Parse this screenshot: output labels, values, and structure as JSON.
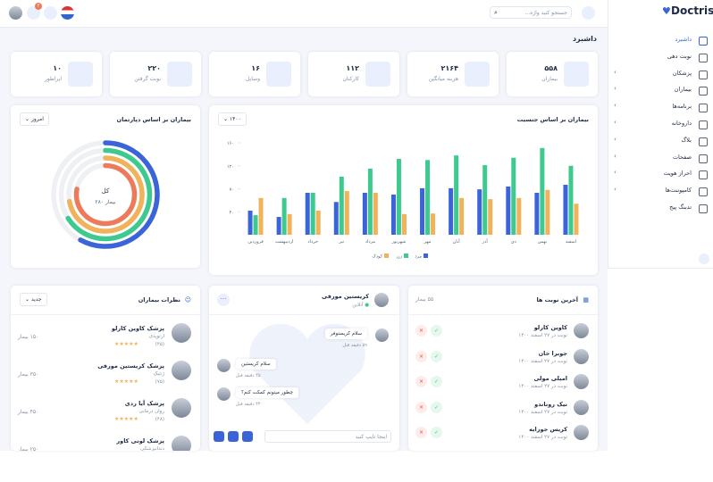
{
  "sidebar": {
    "logo": "Doctris",
    "menu": [
      "داشبرد",
      "نوبت دهی",
      "پزشکان",
      "بیماران",
      "برنامه‌ها",
      "داروخانه",
      "بلاگ",
      "صفحات",
      "احراز هویت",
      "کامپوننت‌ها",
      "تدبنگ پیج"
    ]
  },
  "topbar": {
    "search": "جستجو کنید واژه...",
    "badge": "۴"
  },
  "page_title": "داشبرد",
  "stats": [
    {
      "value": "۵۵۸",
      "label": "بیماران"
    },
    {
      "value": "۲۱۶۴",
      "label": "هزینه میانگین"
    },
    {
      "value": "۱۱۲",
      "label": "کارکنان"
    },
    {
      "value": "۱۶",
      "label": "وسایل"
    },
    {
      "value": "۲۲۰",
      "label": "نوبت گرفتن"
    },
    {
      "value": "۱۰",
      "label": "اپراطور"
    }
  ],
  "chart_data": [
    {
      "type": "bar",
      "title": "بیماران بر اساس جنسیت",
      "dropdown": "۱۴۰۰",
      "categories": [
        "فروردین",
        "اردیبهشت",
        "خرداد",
        "تیر",
        "مرداد",
        "شهریور",
        "مهر",
        "آبان",
        "آذر",
        "دی",
        "بهمن",
        "اسفند"
      ],
      "series": [
        {
          "name": "مرد",
          "color": "#3c64d9",
          "values": [
            42,
            31,
            73,
            57,
            73,
            70,
            81,
            81,
            79,
            84,
            73,
            87
          ]
        },
        {
          "name": "زن",
          "color": "#3ec98e",
          "values": [
            34,
            64,
            73,
            101,
            115,
            132,
            130,
            138,
            121,
            134,
            151,
            120
          ]
        },
        {
          "name": "کودک",
          "color": "#f0b25a",
          "values": [
            64,
            36,
            42,
            76,
            73,
            36,
            37,
            64,
            62,
            64,
            78,
            54
          ]
        }
      ],
      "ylim": [
        0,
        160
      ],
      "yticks": [
        {
          "value": 40,
          "label": "۴۰"
        },
        {
          "value": 80,
          "label": "۸۰"
        },
        {
          "value": 120,
          "label": "۱۲۰"
        },
        {
          "value": 160,
          "label": "۱۶۰"
        }
      ],
      "grid": false,
      "legend": "bottom"
    },
    {
      "type": "radialBar",
      "title": "بیماران بر اساس دپارتمان",
      "dropdown": "امروز",
      "center_label": "کل",
      "center_value": "۲۸۰ بیمار",
      "ylim": [
        0,
        100
      ],
      "values": [
        58,
        66,
        72,
        78
      ],
      "colors": [
        "#3c64d9",
        "#3ec98e",
        "#f0b25a",
        "#ee7a5c"
      ]
    }
  ],
  "appointments": {
    "title": "آخرین نوبت ها",
    "count": "۵۵ بیمار",
    "items": [
      {
        "name": "کاوین کارلو",
        "date": "نوبت در ۲۷ اسفند ۱۴۰۰"
      },
      {
        "name": "جوبرا خان",
        "date": "نوبت در ۲۷ اسفند ۱۴۰۰"
      },
      {
        "name": "امیلی مولی",
        "date": "نوبت در ۲۷ اسفند ۱۴۰۰"
      },
      {
        "name": "نیک روناندو",
        "date": "نوبت در ۲۷ اسفند ۱۴۰۰"
      },
      {
        "name": "کریس جوزایه",
        "date": "نوبت در ۲۷ اسفند ۱۴۰۰"
      }
    ]
  },
  "chat": {
    "name": "کریستین مورفی",
    "status": "آنلاین",
    "messages": [
      {
        "text": "سلام کریستوفر",
        "time": "۵۹ دقیقه قبل"
      },
      {
        "text": "سلام کریستین",
        "time": "۴۵ دقیقه قبل"
      },
      {
        "text": "چطور میتونم کمکت کنم؟",
        "time": "۴۴ دقیقه قبل"
      }
    ],
    "input": "اینجا تایپ کنید"
  },
  "reviews": {
    "title": "نظرات بیماران",
    "filter": "جدید",
    "items": [
      {
        "name": "پزشک کاوین کارلو",
        "specialty": "ارتوپدی",
        "rating": "(۴۵)",
        "patients": "۱۵۰ بیمار"
      },
      {
        "name": "پزشک کریستین مورفی",
        "specialty": "ژنتیک",
        "rating": "(۷۵)",
        "patients": "۳۵۰ بیمار"
      },
      {
        "name": "پزشک آیا ردی",
        "specialty": "روان درمانی",
        "rating": "(۴۸)",
        "patients": "۴۵۰ بیمار"
      },
      {
        "name": "پزشک لونی کاور",
        "specialty": "دندانپزشکی",
        "rating": "(۶۰)",
        "patients": "۲۵۰ بیمار"
      }
    ]
  }
}
